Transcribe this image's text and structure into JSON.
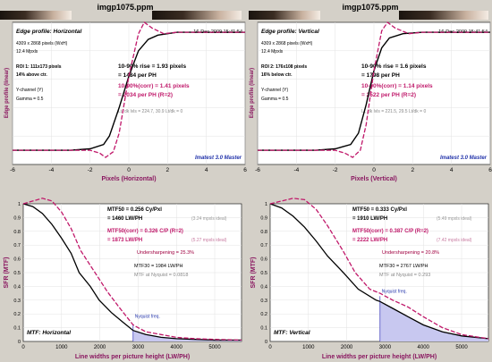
{
  "colors": {
    "background": "#d4d0c8",
    "plot_bg": "#ffffff",
    "black_curve": "#000000",
    "red_curve": "#c0186a",
    "axis_label": "#8a1760",
    "dark_red_text": "#a00040",
    "blue_text": "#2233aa",
    "nyquist_fill": "#c8c8f0",
    "gray_text": "#888888"
  },
  "panels": {
    "tl": {
      "title": "imgp1075.ppm",
      "subtitle": "Edge profile: Horizontal",
      "date": "16-Dec-2009 15:41:54",
      "info": [
        "4309 x 2868 pixels (WxH)",
        "12.4 Mpxls",
        "ROI 1: 111x173 pixels",
        "14% above ctr.",
        "Y-channel (Y)",
        "Gamma = 0.5"
      ],
      "rise": "10-90% rise = 1.93 pixels",
      "rise_ph": "= 1484 per PH",
      "corr": "10-90%(corr) = 1.41 pixels",
      "corr_ph": "= 2034 per PH   (R=2)",
      "lt": "Lt, dk lvls = 224.7, 30.9   Lt/dk = 0",
      "brand": "Imatest 3.0 Master",
      "ylabel": "Edge profile (linear)",
      "xlabel": "Pixels (Horizontal)",
      "xticks": [
        "-6",
        "-4",
        "-2",
        "0",
        "2",
        "4",
        "6"
      ]
    },
    "tr": {
      "title": "imgp1075.ppm",
      "subtitle": "Edge profile: Vertical",
      "date": "16-Dec-2009 15:41:54",
      "info": [
        "4309 x 2868 pixels (WxH)",
        "12.4 Mpxls",
        "ROI 2: 176x108 pixels",
        "16% below ctr.",
        "Y-channel (Y)",
        "Gamma = 0.5"
      ],
      "rise": "10-90% rise = 1.6 pixels",
      "rise_ph": "= 1798 per PH",
      "corr": "10-90%(corr) = 1.14 pixels",
      "corr_ph": "= 2522 per PH   (R=2)",
      "lt": "Lt, dk lvls = 221.5, 29.5   Lt/dk = 0",
      "brand": "Imatest 3.0 Master",
      "ylabel": "Edge profile (linear)",
      "xlabel": "Pixels (Vertical)",
      "xticks": [
        "-6",
        "-4",
        "-2",
        "0",
        "2",
        "4",
        "6"
      ]
    },
    "bl": {
      "mtf50": "MTF50 = 0.256 Cy/Pxl",
      "mtf50_lw": "= 1460 LW/PH",
      "mtf50_ideal": "(3.24 mpxls ideal)",
      "mtf50c": "MTF50(corr) = 0.326 C/P  (R=2)",
      "mtf50c_lw": "= 1873 LW/PH",
      "mtf50c_ideal": "(5.27 mpxls ideal)",
      "under": "Undersharpening = 25.3%",
      "mtf30": "MTF30 = 1984 LW/PH",
      "nyq_text": "MTF at Nyquist = 0.0818",
      "nyq_label": "Nyquist freq.",
      "label": "MTF: Horizontal",
      "ylabel": "SFR (MTF)",
      "xlabel": "Line widths per picture height (LW/PH)",
      "xticks": [
        "0",
        "1000",
        "2000",
        "3000",
        "4000",
        "5000"
      ],
      "yticks": [
        "0",
        "0.1",
        "0.2",
        "0.3",
        "0.4",
        "0.5",
        "0.6",
        "0.7",
        "0.8",
        "0.9",
        "1"
      ]
    },
    "br": {
      "mtf50": "MTF50 = 0.333 Cy/Pxl",
      "mtf50_lw": "= 1910 LW/PH",
      "mtf50_ideal": "(5.49 mpxls ideal)",
      "mtf50c": "MTF50(corr) = 0.387 C/P  (R=2)",
      "mtf50c_lw": "= 2222 LW/PH",
      "mtf50c_ideal": "(7.42 mpxls ideal)",
      "under": "Undersharpening = 20.8%",
      "mtf30": "MTF30 = 2767 LW/PH",
      "nyq_text": "MTF at Nyquist = 0.293",
      "nyq_label": "Nyquist freq.",
      "label": "MTF: Vertical",
      "ylabel": "SFR (MTF)",
      "xlabel": "Line widths per picture height (LW/PH)",
      "xticks": [
        "0",
        "1000",
        "2000",
        "3000",
        "4000",
        "5000"
      ],
      "yticks": [
        "0",
        "0.1",
        "0.2",
        "0.3",
        "0.4",
        "0.5",
        "0.6",
        "0.7",
        "0.8",
        "0.9",
        "1"
      ]
    }
  },
  "chart_data": [
    {
      "type": "line",
      "title": "Edge profile: Horizontal",
      "xlabel": "Pixels (Horizontal)",
      "ylabel": "Edge profile (linear)",
      "xlim": [
        -6,
        6
      ],
      "ylim": [
        0,
        1
      ],
      "series": [
        {
          "points": [
            [
              -6,
              0.1
            ],
            [
              -3,
              0.1
            ],
            [
              -2,
              0.11
            ],
            [
              -1.3,
              0.14
            ],
            [
              -1,
              0.2
            ],
            [
              -0.5,
              0.4
            ],
            [
              0,
              0.62
            ],
            [
              0.5,
              0.8
            ],
            [
              1,
              0.88
            ],
            [
              1.5,
              0.91
            ],
            [
              2.5,
              0.93
            ],
            [
              6,
              0.93
            ]
          ]
        },
        {
          "points": [
            [
              -6,
              0.1
            ],
            [
              -3,
              0.1
            ],
            [
              -2,
              0.1
            ],
            [
              -1.5,
              0.08
            ],
            [
              -1.2,
              0.05
            ],
            [
              -0.8,
              0.09
            ],
            [
              -0.5,
              0.22
            ],
            [
              0,
              0.62
            ],
            [
              0.5,
              0.92
            ],
            [
              0.8,
              1.0
            ],
            [
              1.2,
              0.96
            ],
            [
              1.8,
              0.92
            ],
            [
              2.5,
              0.93
            ],
            [
              6,
              0.93
            ]
          ]
        }
      ]
    },
    {
      "type": "line",
      "title": "Edge profile: Vertical",
      "xlabel": "Pixels (Vertical)",
      "ylabel": "Edge profile (linear)",
      "xlim": [
        -6,
        6
      ],
      "ylim": [
        0,
        1
      ],
      "series": [
        {
          "points": [
            [
              -6,
              0.1
            ],
            [
              -3,
              0.1
            ],
            [
              -2,
              0.11
            ],
            [
              -1.2,
              0.14
            ],
            [
              -0.8,
              0.22
            ],
            [
              -0.4,
              0.42
            ],
            [
              0,
              0.66
            ],
            [
              0.4,
              0.82
            ],
            [
              0.8,
              0.89
            ],
            [
              1.5,
              0.92
            ],
            [
              2.5,
              0.93
            ],
            [
              6,
              0.93
            ]
          ]
        },
        {
          "points": [
            [
              -6,
              0.1
            ],
            [
              -3,
              0.1
            ],
            [
              -2,
              0.1
            ],
            [
              -1.5,
              0.08
            ],
            [
              -1.1,
              0.05
            ],
            [
              -0.7,
              0.1
            ],
            [
              -0.4,
              0.28
            ],
            [
              0,
              0.66
            ],
            [
              0.4,
              0.94
            ],
            [
              0.7,
              1.0
            ],
            [
              1.1,
              0.96
            ],
            [
              1.8,
              0.92
            ],
            [
              2.5,
              0.93
            ],
            [
              6,
              0.93
            ]
          ]
        }
      ]
    },
    {
      "type": "line",
      "title": "MTF: Horizontal",
      "xlabel": "Line widths per picture height (LW/PH)",
      "ylabel": "SFR (MTF)",
      "xlim": [
        0,
        5700
      ],
      "ylim": [
        0,
        1
      ],
      "series": [
        {
          "points": [
            [
              0,
              1.0
            ],
            [
              250,
              0.98
            ],
            [
              500,
              0.93
            ],
            [
              750,
              0.85
            ],
            [
              1000,
              0.75
            ],
            [
              1250,
              0.64
            ],
            [
              1460,
              0.5
            ],
            [
              1750,
              0.4
            ],
            [
              1984,
              0.3
            ],
            [
              2300,
              0.21
            ],
            [
              2600,
              0.14
            ],
            [
              2868,
              0.08
            ],
            [
              3200,
              0.05
            ],
            [
              3600,
              0.03
            ],
            [
              4000,
              0.02
            ],
            [
              4500,
              0.015
            ],
            [
              5000,
              0.01
            ],
            [
              5700,
              0.01
            ]
          ]
        },
        {
          "points": [
            [
              0,
              1.0
            ],
            [
              250,
              1.02
            ],
            [
              500,
              1.04
            ],
            [
              750,
              1.02
            ],
            [
              1000,
              0.94
            ],
            [
              1250,
              0.82
            ],
            [
              1500,
              0.66
            ],
            [
              1873,
              0.5
            ],
            [
              2200,
              0.36
            ],
            [
              2500,
              0.25
            ],
            [
              2868,
              0.12
            ],
            [
              3200,
              0.07
            ],
            [
              3600,
              0.05
            ],
            [
              4000,
              0.03
            ],
            [
              4500,
              0.02
            ],
            [
              5000,
              0.015
            ],
            [
              5700,
              0.01
            ]
          ]
        }
      ],
      "nyquist": 2868
    },
    {
      "type": "line",
      "title": "MTF: Vertical",
      "xlabel": "Line widths per picture height (LW/PH)",
      "ylabel": "SFR (MTF)",
      "xlim": [
        0,
        5700
      ],
      "ylim": [
        0,
        1
      ],
      "series": [
        {
          "points": [
            [
              0,
              1.0
            ],
            [
              300,
              0.97
            ],
            [
              600,
              0.91
            ],
            [
              900,
              0.83
            ],
            [
              1200,
              0.73
            ],
            [
              1500,
              0.62
            ],
            [
              1910,
              0.5
            ],
            [
              2300,
              0.38
            ],
            [
              2767,
              0.3
            ],
            [
              2868,
              0.29
            ],
            [
              3200,
              0.24
            ],
            [
              3600,
              0.18
            ],
            [
              4000,
              0.12
            ],
            [
              4500,
              0.07
            ],
            [
              5000,
              0.04
            ],
            [
              5700,
              0.02
            ]
          ]
        },
        {
          "points": [
            [
              0,
              1.0
            ],
            [
              300,
              1.02
            ],
            [
              600,
              1.04
            ],
            [
              900,
              1.03
            ],
            [
              1200,
              0.96
            ],
            [
              1500,
              0.84
            ],
            [
              1900,
              0.66
            ],
            [
              2222,
              0.5
            ],
            [
              2600,
              0.38
            ],
            [
              2868,
              0.35
            ],
            [
              3200,
              0.3
            ],
            [
              3600,
              0.25
            ],
            [
              4000,
              0.18
            ],
            [
              4500,
              0.1
            ],
            [
              5000,
              0.05
            ],
            [
              5700,
              0.02
            ]
          ]
        }
      ],
      "nyquist": 2868
    }
  ]
}
